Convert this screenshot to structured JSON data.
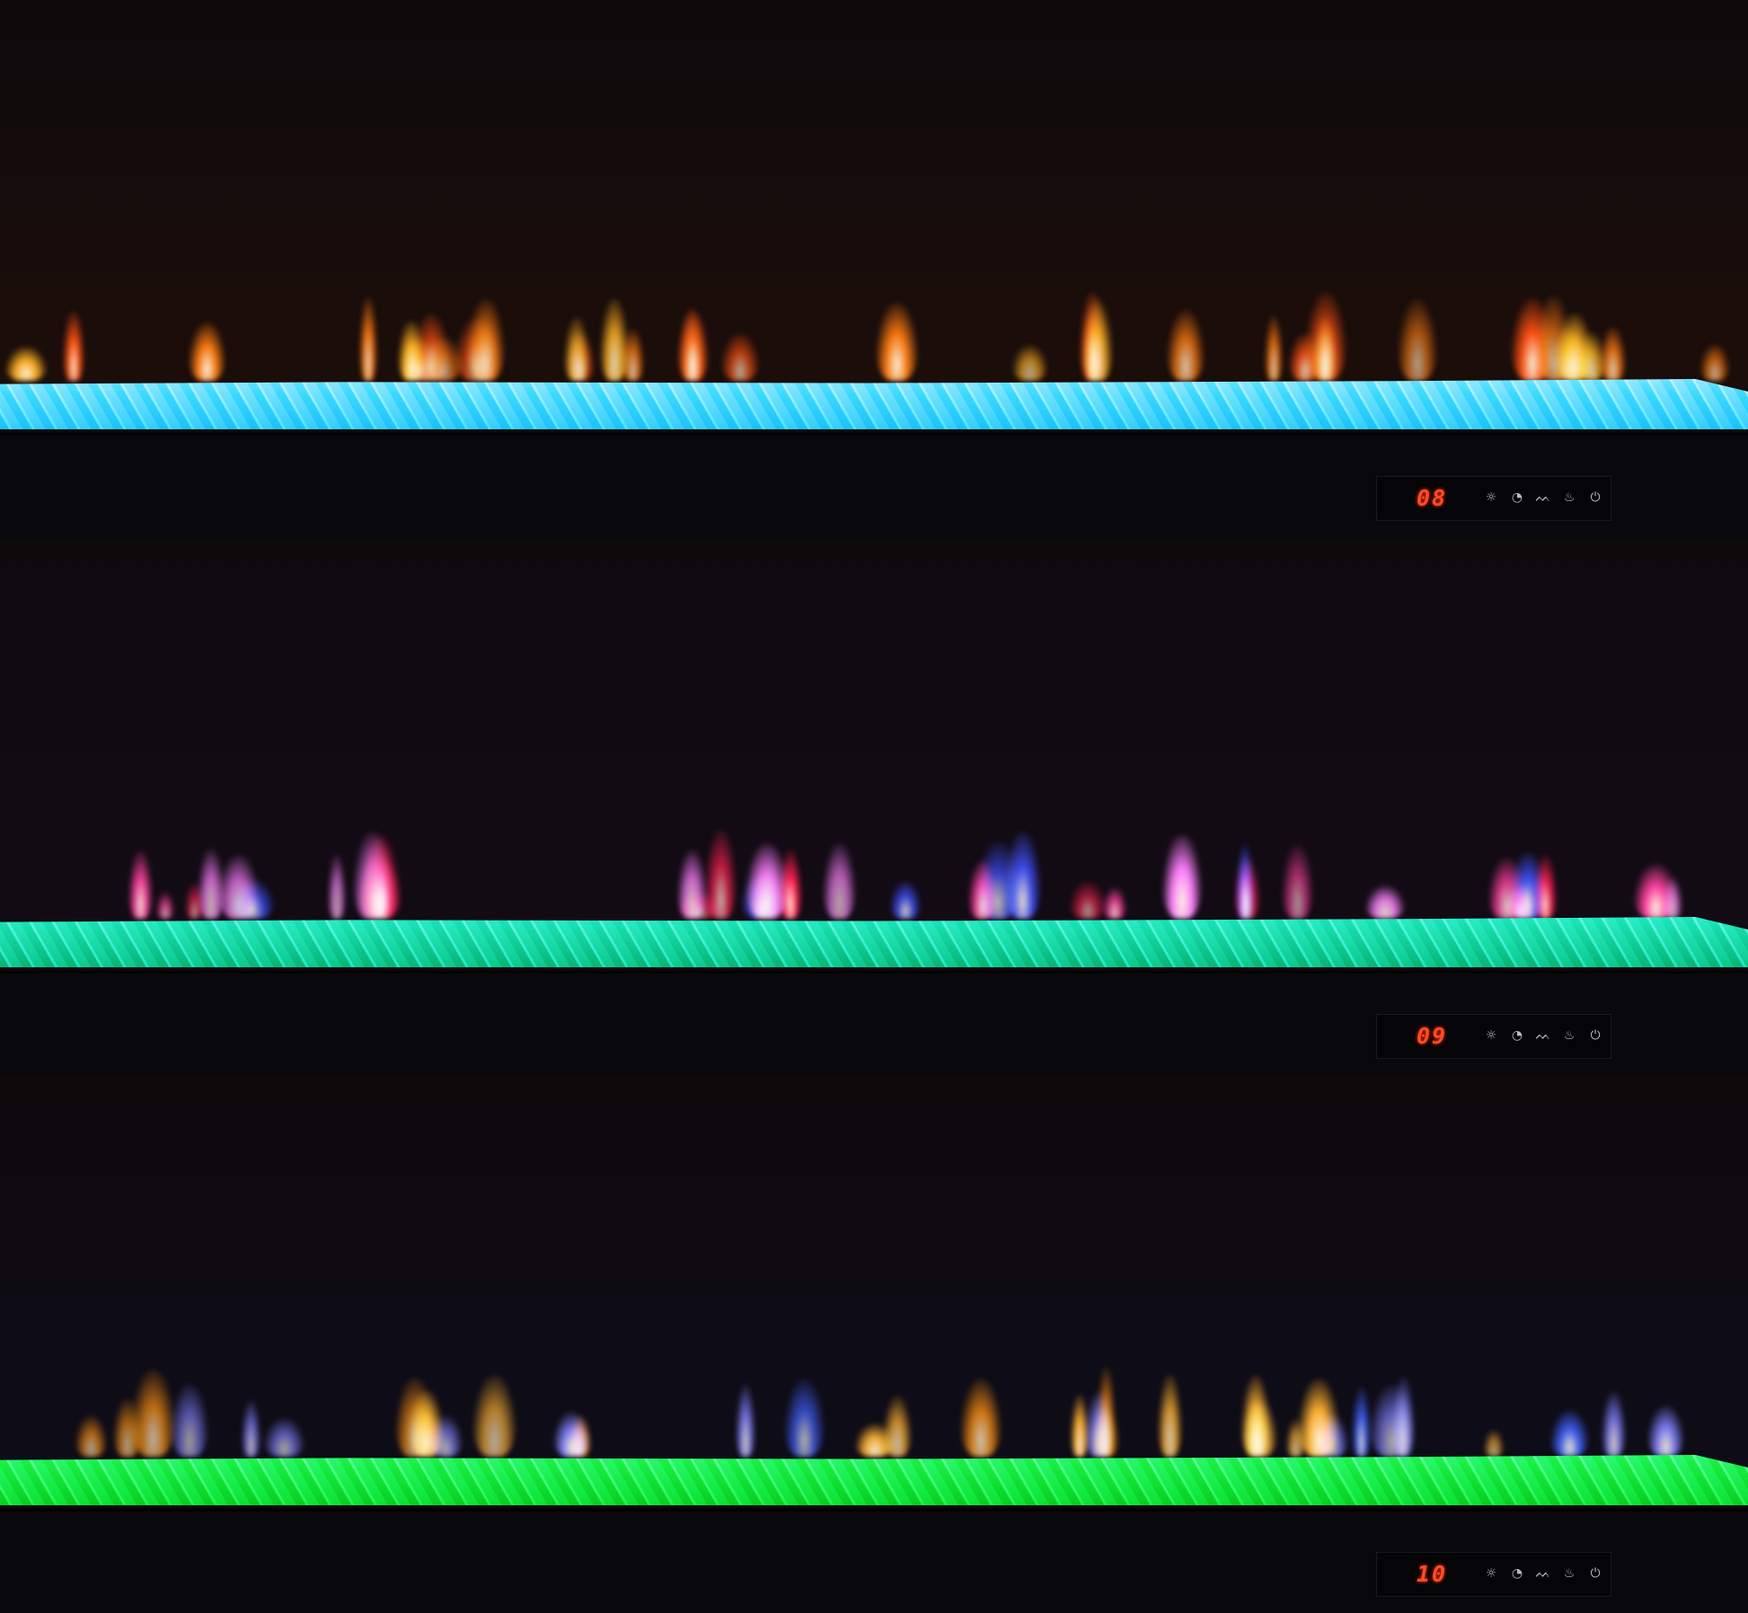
{
  "panels": [
    {
      "display": "08",
      "glass_color": "#1a0d0a",
      "bed_colors": [
        "#3aa6e8",
        "#9fd8ff",
        "#6fb8f0"
      ],
      "flame_colors": [
        "#ff7a10",
        "#ffb020",
        "#ff5010"
      ]
    },
    {
      "display": "09",
      "glass_color": "#120b14",
      "bed_colors": [
        "#1f9d7a",
        "#6fe0c0",
        "#2fb890"
      ],
      "flame_colors": [
        "#ff2050",
        "#ff40a0",
        "#4050ff",
        "#ff80ff"
      ]
    },
    {
      "display": "10",
      "glass_color": "#0e0c16",
      "bed_colors": [
        "#1fb040",
        "#70f090",
        "#2fd060"
      ],
      "flame_colors": [
        "#ff9010",
        "#4060ff",
        "#8080ff",
        "#ffb030"
      ]
    }
  ],
  "control_icons": [
    "brightness-icon",
    "timer-icon",
    "flame-height-icon",
    "flame-color-icon",
    "power-icon"
  ]
}
